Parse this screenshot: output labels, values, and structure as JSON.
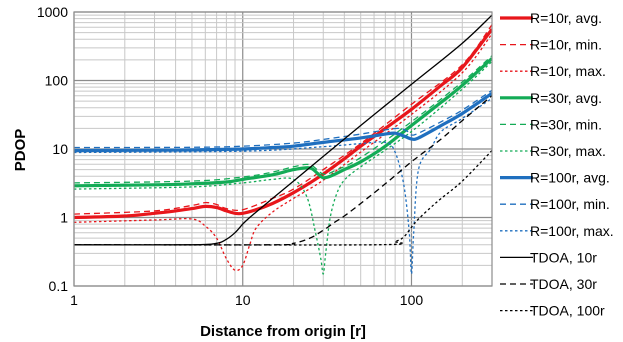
{
  "chart_data": {
    "type": "line",
    "title": "",
    "xlabel": "Distance from origin [r]",
    "ylabel": "PDOP",
    "xscale": "log",
    "yscale": "log",
    "xlim": [
      1,
      300
    ],
    "ylim": [
      0.1,
      1000
    ],
    "x_ticks": [
      {
        "v": 1,
        "label": "1"
      },
      {
        "v": 10,
        "label": "10"
      },
      {
        "v": 100,
        "label": "100"
      }
    ],
    "y_ticks": [
      {
        "v": 0.1,
        "label": "0.1"
      },
      {
        "v": 1,
        "label": "1"
      },
      {
        "v": 10,
        "label": "10"
      },
      {
        "v": 100,
        "label": "100"
      },
      {
        "v": 1000,
        "label": "1000"
      }
    ],
    "grid": true,
    "legend_position": "right",
    "series": [
      {
        "name": "R=10r, avg.",
        "color": "#e8161b",
        "dash": "solid",
        "width": "thick",
        "points": [
          [
            1,
            1.0
          ],
          [
            2,
            1.05
          ],
          [
            3,
            1.15
          ],
          [
            4,
            1.25
          ],
          [
            5,
            1.35
          ],
          [
            6,
            1.45
          ],
          [
            7,
            1.4
          ],
          [
            8,
            1.25
          ],
          [
            9,
            1.15
          ],
          [
            10,
            1.15
          ],
          [
            12,
            1.3
          ],
          [
            15,
            1.6
          ],
          [
            20,
            2.3
          ],
          [
            25,
            3.2
          ],
          [
            30,
            4.3
          ],
          [
            40,
            7.2
          ],
          [
            50,
            11
          ],
          [
            70,
            20
          ],
          [
            100,
            38
          ],
          [
            150,
            85
          ],
          [
            200,
            155
          ],
          [
            300,
            560
          ]
        ]
      },
      {
        "name": "R=10r, min.",
        "color": "#e8161b",
        "dash": "dash",
        "width": "thin",
        "points": [
          [
            1,
            1.12
          ],
          [
            3,
            1.25
          ],
          [
            5,
            1.5
          ],
          [
            6,
            1.65
          ],
          [
            7,
            1.55
          ],
          [
            8,
            1.35
          ],
          [
            10,
            1.3
          ],
          [
            15,
            1.9
          ],
          [
            20,
            2.6
          ],
          [
            30,
            5
          ],
          [
            50,
            12
          ],
          [
            100,
            45
          ],
          [
            200,
            170
          ],
          [
            300,
            650
          ]
        ]
      },
      {
        "name": "R=10r, max.",
        "color": "#e8161b",
        "dash": "dot",
        "width": "thin",
        "points": [
          [
            1,
            0.85
          ],
          [
            3,
            0.92
          ],
          [
            5,
            0.95
          ],
          [
            6,
            0.75
          ],
          [
            7,
            0.5
          ],
          [
            8,
            0.25
          ],
          [
            9,
            0.17
          ],
          [
            10,
            0.2
          ],
          [
            11,
            0.4
          ],
          [
            12,
            0.7
          ],
          [
            15,
            1.2
          ],
          [
            20,
            1.9
          ],
          [
            30,
            3.5
          ],
          [
            50,
            9
          ],
          [
            100,
            32
          ],
          [
            200,
            130
          ],
          [
            300,
            480
          ]
        ]
      },
      {
        "name": "R=30r, avg.",
        "color": "#13ab56",
        "dash": "solid",
        "width": "thick",
        "points": [
          [
            1,
            2.9
          ],
          [
            3,
            3.0
          ],
          [
            5,
            3.1
          ],
          [
            8,
            3.3
          ],
          [
            10,
            3.6
          ],
          [
            15,
            4.2
          ],
          [
            20,
            5.0
          ],
          [
            25,
            5.3
          ],
          [
            28,
            4.3
          ],
          [
            30,
            3.8
          ],
          [
            33,
            4.0
          ],
          [
            40,
            5.0
          ],
          [
            50,
            6.5
          ],
          [
            70,
            11
          ],
          [
            100,
            22
          ],
          [
            150,
            48
          ],
          [
            200,
            85
          ],
          [
            300,
            210
          ]
        ]
      },
      {
        "name": "R=30r, min.",
        "color": "#13ab56",
        "dash": "dash",
        "width": "thin",
        "points": [
          [
            1,
            3.2
          ],
          [
            5,
            3.4
          ],
          [
            10,
            3.9
          ],
          [
            15,
            4.6
          ],
          [
            20,
            5.5
          ],
          [
            25,
            5.9
          ],
          [
            30,
            4.3
          ],
          [
            35,
            4.8
          ],
          [
            50,
            7.5
          ],
          [
            100,
            25
          ],
          [
            200,
            95
          ],
          [
            300,
            230
          ]
        ]
      },
      {
        "name": "R=30r, max.",
        "color": "#13ab56",
        "dash": "dot",
        "width": "thin",
        "points": [
          [
            1,
            2.6
          ],
          [
            5,
            2.8
          ],
          [
            10,
            3.2
          ],
          [
            15,
            3.6
          ],
          [
            20,
            3.6
          ],
          [
            24,
            2.0
          ],
          [
            27,
            0.6
          ],
          [
            29,
            0.25
          ],
          [
            30,
            0.15
          ],
          [
            31,
            0.3
          ],
          [
            33,
            1.0
          ],
          [
            36,
            2.2
          ],
          [
            40,
            3.5
          ],
          [
            50,
            5.5
          ],
          [
            100,
            18
          ],
          [
            200,
            75
          ],
          [
            300,
            190
          ]
        ]
      },
      {
        "name": "R=100r, avg.",
        "color": "#1f6fbf",
        "dash": "solid",
        "width": "thick",
        "points": [
          [
            1,
            9.5
          ],
          [
            3,
            9.6
          ],
          [
            5,
            9.7
          ],
          [
            10,
            10.0
          ],
          [
            15,
            10.5
          ],
          [
            20,
            11.0
          ],
          [
            30,
            12.5
          ],
          [
            50,
            14.5
          ],
          [
            70,
            16.5
          ],
          [
            80,
            17.0
          ],
          [
            90,
            15.5
          ],
          [
            100,
            14.0
          ],
          [
            110,
            14.5
          ],
          [
            150,
            22
          ],
          [
            200,
            33
          ],
          [
            300,
            65
          ]
        ]
      },
      {
        "name": "R=100r, min.",
        "color": "#1f6fbf",
        "dash": "dash",
        "width": "thin",
        "points": [
          [
            1,
            10.5
          ],
          [
            5,
            10.6
          ],
          [
            10,
            11
          ],
          [
            20,
            12.2
          ],
          [
            30,
            13.8
          ],
          [
            50,
            16.5
          ],
          [
            70,
            19
          ],
          [
            85,
            20
          ],
          [
            95,
            18
          ],
          [
            100,
            16
          ],
          [
            110,
            17
          ],
          [
            150,
            25
          ],
          [
            200,
            37
          ],
          [
            300,
            72
          ]
        ]
      },
      {
        "name": "R=100r, max.",
        "color": "#1f6fbf",
        "dash": "dot",
        "width": "thin",
        "points": [
          [
            1,
            8.9
          ],
          [
            10,
            9.3
          ],
          [
            30,
            10.8
          ],
          [
            50,
            12
          ],
          [
            70,
            12.5
          ],
          [
            80,
            9
          ],
          [
            90,
            3
          ],
          [
            97,
            0.6
          ],
          [
            100,
            0.15
          ],
          [
            103,
            0.6
          ],
          [
            110,
            5
          ],
          [
            130,
            10
          ],
          [
            150,
            18
          ],
          [
            200,
            28
          ],
          [
            300,
            55
          ]
        ]
      },
      {
        "name": "TDOA, 10r",
        "color": "#000000",
        "dash": "solid",
        "width": "thin",
        "points": [
          [
            1,
            0.4
          ],
          [
            5,
            0.4
          ],
          [
            7,
            0.42
          ],
          [
            8,
            0.48
          ],
          [
            9,
            0.6
          ],
          [
            10,
            0.8
          ],
          [
            11,
            1.0
          ],
          [
            12,
            1.2
          ],
          [
            15,
            1.9
          ],
          [
            20,
            3.4
          ],
          [
            30,
            7.8
          ],
          [
            50,
            22
          ],
          [
            100,
            88
          ],
          [
            200,
            350
          ],
          [
            300,
            900
          ]
        ]
      },
      {
        "name": "TDOA, 30r",
        "color": "#000000",
        "dash": "dash",
        "width": "thin",
        "points": [
          [
            1,
            0.4
          ],
          [
            15,
            0.4
          ],
          [
            20,
            0.42
          ],
          [
            25,
            0.5
          ],
          [
            30,
            0.65
          ],
          [
            35,
            0.85
          ],
          [
            40,
            1.05
          ],
          [
            50,
            1.6
          ],
          [
            70,
            3.1
          ],
          [
            100,
            6.5
          ],
          [
            150,
            14
          ],
          [
            200,
            26
          ],
          [
            300,
            60
          ]
        ]
      },
      {
        "name": "TDOA, 100r",
        "color": "#000000",
        "dash": "dot",
        "width": "thin",
        "points": [
          [
            1,
            0.4
          ],
          [
            60,
            0.4
          ],
          [
            80,
            0.45
          ],
          [
            90,
            0.52
          ],
          [
            100,
            0.72
          ],
          [
            110,
            0.95
          ],
          [
            130,
            1.4
          ],
          [
            150,
            1.9
          ],
          [
            200,
            3.4
          ],
          [
            300,
            9.5
          ]
        ]
      }
    ]
  }
}
